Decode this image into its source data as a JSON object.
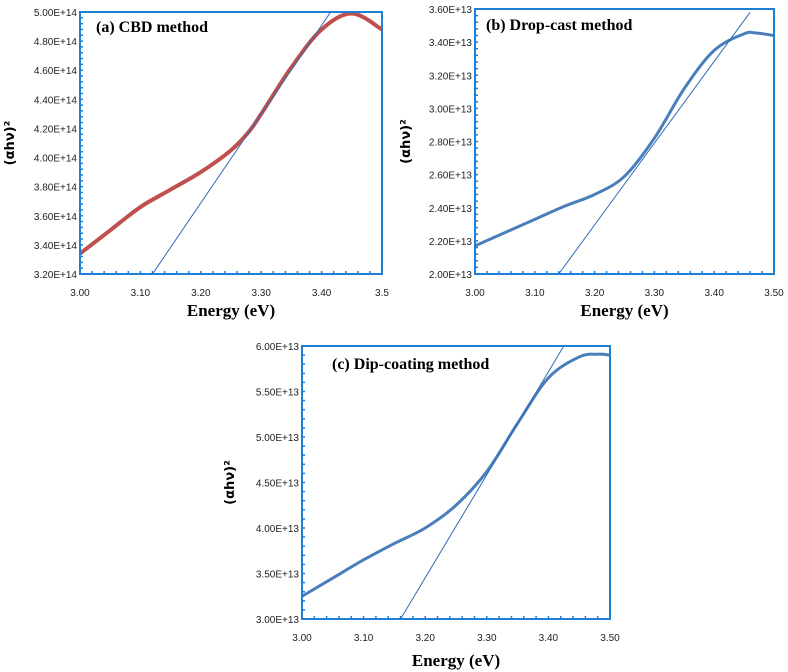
{
  "chart_data": [
    {
      "type": "line",
      "title": "(a) CBD method",
      "xlabel": "Energy (eV)",
      "ylabel": "(αhν)²",
      "xlim": [
        3.0,
        3.5
      ],
      "ylim": [
        320000000000000.0,
        500000000000000.0
      ],
      "x_ticks": [
        "3.00",
        "3.10",
        "3.20",
        "3.30",
        "3.40",
        "3.5"
      ],
      "y_ticks": [
        "3.20E+14",
        "3.40E+14",
        "3.60E+14",
        "3.80E+14",
        "4.00E+14",
        "4.20E+14",
        "4.40E+14",
        "4.60E+14",
        "4.80E+14",
        "5.00E+14"
      ],
      "grid": false,
      "curve_color": "#c0504d",
      "line_color": "#2e6bb5",
      "frame_color": "#1f7fd4",
      "series": [
        {
          "x": [
            3.0,
            3.05,
            3.1,
            3.15,
            3.2,
            3.25,
            3.28,
            3.3,
            3.35,
            3.4,
            3.45,
            3.5
          ],
          "y": [
            334000000000000.0,
            350000000000000.0,
            366000000000000.0,
            378000000000000.0,
            390000000000000.0,
            405000000000000.0,
            418000000000000.0,
            430000000000000.0,
            462000000000000.0,
            488000000000000.0,
            499000000000000.0,
            488000000000000.0
          ]
        },
        {
          "x": [
            3.12,
            3.415
          ],
          "y": [
            320000000000000.0,
            500000000000000.0
          ]
        }
      ]
    },
    {
      "type": "line",
      "title": "(b) Drop-cast method",
      "xlabel": "Energy (eV)",
      "ylabel": "(αhν)²",
      "xlim": [
        3.0,
        3.5
      ],
      "ylim": [
        20000000000000.0,
        36000000000000.0
      ],
      "x_ticks": [
        "3.00",
        "3.10",
        "3.20",
        "3.30",
        "3.40",
        "3.50"
      ],
      "y_ticks": [
        "2.00E+13",
        "2.20E+13",
        "2.40E+13",
        "2.60E+13",
        "2.80E+13",
        "3.00E+13",
        "3.20E+13",
        "3.40E+13",
        "3.60E+13"
      ],
      "grid": false,
      "curve_color": "#4a7ebb",
      "line_color": "#2e6bb5",
      "frame_color": "#1f7fd4",
      "series": [
        {
          "x": [
            3.0,
            3.05,
            3.1,
            3.15,
            3.2,
            3.25,
            3.3,
            3.35,
            3.4,
            3.45,
            3.47,
            3.5
          ],
          "y": [
            21700000000000.0,
            22500000000000.0,
            23300000000000.0,
            24100000000000.0,
            24800000000000.0,
            25900000000000.0,
            28200000000000.0,
            31200000000000.0,
            33500000000000.0,
            34500000000000.0,
            34550000000000.0,
            34400000000000.0
          ]
        },
        {
          "x": [
            3.14,
            3.46
          ],
          "y": [
            20000000000000.0,
            35800000000000.0
          ]
        }
      ]
    },
    {
      "type": "line",
      "title": "(c) Dip-coating method",
      "xlabel": "Energy (eV)",
      "ylabel": "(αhν)²",
      "xlim": [
        3.0,
        3.5
      ],
      "ylim": [
        30000000000000.0,
        60000000000000.0
      ],
      "x_ticks": [
        "3.00",
        "3.10",
        "3.20",
        "3.30",
        "3.40",
        "3.50"
      ],
      "y_ticks": [
        "3.00E+13",
        "3.50E+13",
        "4.00E+13",
        "4.50E+13",
        "5.00E+13",
        "5.50E+13",
        "6.00E+13"
      ],
      "grid": false,
      "curve_color": "#4a7ebb",
      "line_color": "#2e6bb5",
      "frame_color": "#1f7fd4",
      "series": [
        {
          "x": [
            3.0,
            3.05,
            3.1,
            3.15,
            3.2,
            3.25,
            3.3,
            3.35,
            3.4,
            3.45,
            3.48,
            3.5
          ],
          "y": [
            32500000000000.0,
            34500000000000.0,
            36500000000000.0,
            38300000000000.0,
            40000000000000.0,
            42500000000000.0,
            46200000000000.0,
            51500000000000.0,
            56500000000000.0,
            58800000000000.0,
            59100000000000.0,
            59000000000000.0
          ]
        },
        {
          "x": [
            3.16,
            3.425
          ],
          "y": [
            30000000000000.0,
            60000000000000.0
          ]
        }
      ]
    }
  ]
}
